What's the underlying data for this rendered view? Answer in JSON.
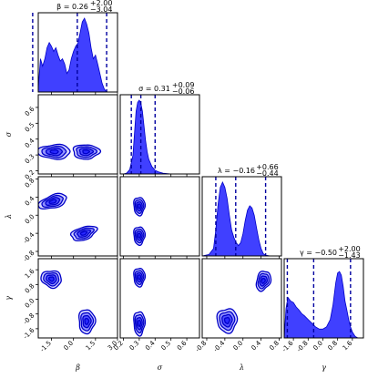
{
  "chart_data": {
    "type": "corner",
    "parameters": [
      {
        "symbol": "β",
        "name": "beta",
        "range": [
          -2.4,
          3.0
        ],
        "ticks": [
          "-1.5",
          "0.0",
          "1.5",
          "3.0"
        ],
        "tick_values": [
          -1.5,
          0.0,
          1.5,
          3.0
        ],
        "title_lhs": "β = 0.26",
        "plus": "+2.00",
        "minus": "−3.04",
        "quantiles": [
          -2.78,
          0.26,
          2.26
        ],
        "density": [
          [
            -2.4,
            0.05
          ],
          [
            -2.25,
            0.45
          ],
          [
            -2.1,
            0.35
          ],
          [
            -1.95,
            0.45
          ],
          [
            -1.8,
            0.6
          ],
          [
            -1.65,
            0.67
          ],
          [
            -1.5,
            0.62
          ],
          [
            -1.35,
            0.55
          ],
          [
            -1.2,
            0.6
          ],
          [
            -1.05,
            0.5
          ],
          [
            -0.9,
            0.42
          ],
          [
            -0.75,
            0.45
          ],
          [
            -0.6,
            0.38
          ],
          [
            -0.45,
            0.25
          ],
          [
            -0.3,
            0.3
          ],
          [
            -0.15,
            0.45
          ],
          [
            0.0,
            0.55
          ],
          [
            0.15,
            0.62
          ],
          [
            0.3,
            0.66
          ],
          [
            0.45,
            0.8
          ],
          [
            0.6,
            0.95
          ],
          [
            0.75,
            1.0
          ],
          [
            0.9,
            0.92
          ],
          [
            1.05,
            0.8
          ],
          [
            1.2,
            0.6
          ],
          [
            1.35,
            0.45
          ],
          [
            1.5,
            0.5
          ],
          [
            1.65,
            0.38
          ],
          [
            1.8,
            0.25
          ],
          [
            1.95,
            0.12
          ],
          [
            2.1,
            0.04
          ],
          [
            2.25,
            0.0
          ]
        ]
      },
      {
        "symbol": "σ",
        "name": "sigma",
        "range": [
          0.18,
          0.68
        ],
        "ticks": [
          "0.2",
          "0.3",
          "0.4",
          "0.5",
          "0.6"
        ],
        "tick_values": [
          0.2,
          0.3,
          0.4,
          0.5,
          0.6
        ],
        "title_lhs": "σ = 0.31",
        "plus": "+0.09",
        "minus": "−0.06",
        "quantiles": [
          0.25,
          0.31,
          0.4
        ],
        "density": [
          [
            0.18,
            0.0
          ],
          [
            0.2,
            0.0
          ],
          [
            0.22,
            0.01
          ],
          [
            0.24,
            0.06
          ],
          [
            0.26,
            0.25
          ],
          [
            0.27,
            0.55
          ],
          [
            0.28,
            0.85
          ],
          [
            0.29,
            0.97
          ],
          [
            0.3,
            1.0
          ],
          [
            0.31,
            0.96
          ],
          [
            0.32,
            0.85
          ],
          [
            0.33,
            0.65
          ],
          [
            0.34,
            0.45
          ],
          [
            0.35,
            0.3
          ],
          [
            0.36,
            0.2
          ],
          [
            0.38,
            0.1
          ],
          [
            0.4,
            0.05
          ],
          [
            0.42,
            0.03
          ],
          [
            0.45,
            0.01
          ],
          [
            0.5,
            0.0
          ],
          [
            0.68,
            0.0
          ]
        ]
      },
      {
        "symbol": "λ",
        "name": "lambda",
        "range": [
          -0.9,
          0.85
        ],
        "ticks": [
          "-0.8",
          "-0.4",
          "0.0",
          "0.4",
          "0.8"
        ],
        "tick_values": [
          -0.8,
          -0.4,
          0.0,
          0.4,
          0.8
        ],
        "title_lhs": "λ = −0.16",
        "plus": "+0.66",
        "minus": "−0.44",
        "quantiles": [
          -0.6,
          -0.16,
          0.5
        ],
        "density": [
          [
            -0.9,
            0.0
          ],
          [
            -0.75,
            0.02
          ],
          [
            -0.65,
            0.1
          ],
          [
            -0.6,
            0.35
          ],
          [
            -0.55,
            0.7
          ],
          [
            -0.5,
            0.93
          ],
          [
            -0.45,
            1.0
          ],
          [
            -0.4,
            0.93
          ],
          [
            -0.35,
            0.78
          ],
          [
            -0.3,
            0.55
          ],
          [
            -0.25,
            0.35
          ],
          [
            -0.2,
            0.25
          ],
          [
            -0.15,
            0.18
          ],
          [
            -0.1,
            0.14
          ],
          [
            -0.05,
            0.18
          ],
          [
            0.0,
            0.3
          ],
          [
            0.05,
            0.48
          ],
          [
            0.1,
            0.62
          ],
          [
            0.15,
            0.68
          ],
          [
            0.2,
            0.65
          ],
          [
            0.25,
            0.55
          ],
          [
            0.3,
            0.38
          ],
          [
            0.35,
            0.22
          ],
          [
            0.4,
            0.1
          ],
          [
            0.45,
            0.03
          ],
          [
            0.5,
            0.01
          ],
          [
            0.6,
            0.0
          ],
          [
            0.85,
            0.0
          ]
        ]
      },
      {
        "symbol": "γ",
        "name": "gamma",
        "range": [
          -2.1,
          2.2
        ],
        "ticks": [
          "-1.6",
          "-0.8",
          "0.0",
          "0.8",
          "1.6"
        ],
        "tick_values": [
          -1.6,
          -0.8,
          0.0,
          0.8,
          1.6
        ],
        "title_lhs": "γ = −0.50",
        "plus": "+2.00",
        "minus": "−1.43",
        "quantiles": [
          -1.93,
          -0.5,
          1.5
        ],
        "density": [
          [
            -2.1,
            0.0
          ],
          [
            -2.0,
            0.4
          ],
          [
            -1.9,
            0.55
          ],
          [
            -1.75,
            0.5
          ],
          [
            -1.6,
            0.48
          ],
          [
            -1.45,
            0.42
          ],
          [
            -1.3,
            0.38
          ],
          [
            -1.15,
            0.33
          ],
          [
            -1.0,
            0.3
          ],
          [
            -0.8,
            0.25
          ],
          [
            -0.6,
            0.2
          ],
          [
            -0.4,
            0.15
          ],
          [
            -0.2,
            0.12
          ],
          [
            0.0,
            0.12
          ],
          [
            0.2,
            0.15
          ],
          [
            0.4,
            0.25
          ],
          [
            0.55,
            0.45
          ],
          [
            0.7,
            0.75
          ],
          [
            0.8,
            0.88
          ],
          [
            0.9,
            0.9
          ],
          [
            1.0,
            0.85
          ],
          [
            1.1,
            0.7
          ],
          [
            1.2,
            0.5
          ],
          [
            1.3,
            0.38
          ],
          [
            1.4,
            0.25
          ],
          [
            1.5,
            0.15
          ],
          [
            1.6,
            0.08
          ],
          [
            1.75,
            0.02
          ],
          [
            1.9,
            0.0
          ],
          [
            2.2,
            0.0
          ]
        ]
      }
    ],
    "pairs": [
      {
        "x_param": 0,
        "y_param": 1,
        "blobs": [
          {
            "cx": -1.3,
            "cy": 0.32,
            "rx": 1.1,
            "ry": 0.045,
            "rot": 0
          },
          {
            "cx": 0.85,
            "cy": 0.32,
            "rx": 0.9,
            "ry": 0.045,
            "rot": 0
          }
        ]
      },
      {
        "x_param": 0,
        "y_param": 2,
        "blobs": [
          {
            "cx": -1.4,
            "cy": 0.3,
            "rx": 1.0,
            "ry": 0.14,
            "rot": 18
          },
          {
            "cx": 0.7,
            "cy": -0.4,
            "rx": 0.9,
            "ry": 0.14,
            "rot": 18
          }
        ]
      },
      {
        "x_param": 0,
        "y_param": 3,
        "blobs": [
          {
            "cx": -1.5,
            "cy": 1.1,
            "rx": 0.7,
            "ry": 0.45,
            "rot": -15
          },
          {
            "cx": 0.9,
            "cy": -1.2,
            "rx": 0.55,
            "ry": 0.65,
            "rot": 0
          }
        ]
      },
      {
        "x_param": 1,
        "y_param": 2,
        "blobs": [
          {
            "cx": 0.3,
            "cy": 0.2,
            "rx": 0.035,
            "ry": 0.2,
            "rot": 0
          },
          {
            "cx": 0.3,
            "cy": -0.45,
            "rx": 0.035,
            "ry": 0.2,
            "rot": 0
          }
        ]
      },
      {
        "x_param": 1,
        "y_param": 3,
        "blobs": [
          {
            "cx": 0.3,
            "cy": 1.2,
            "rx": 0.035,
            "ry": 0.5,
            "rot": 0
          },
          {
            "cx": 0.3,
            "cy": -1.3,
            "rx": 0.035,
            "ry": 0.65,
            "rot": 0
          }
        ]
      },
      {
        "x_param": 2,
        "y_param": 3,
        "blobs": [
          {
            "cx": 0.45,
            "cy": 1.0,
            "rx": 0.15,
            "ry": 0.55,
            "rot": -20
          },
          {
            "cx": -0.35,
            "cy": -1.15,
            "rx": 0.22,
            "ry": 0.65,
            "rot": 0
          }
        ]
      }
    ],
    "contour_levels": 4,
    "color": "#1f1fff",
    "line_color": "#0000c8",
    "quantile_line_color": "#0000a0"
  }
}
